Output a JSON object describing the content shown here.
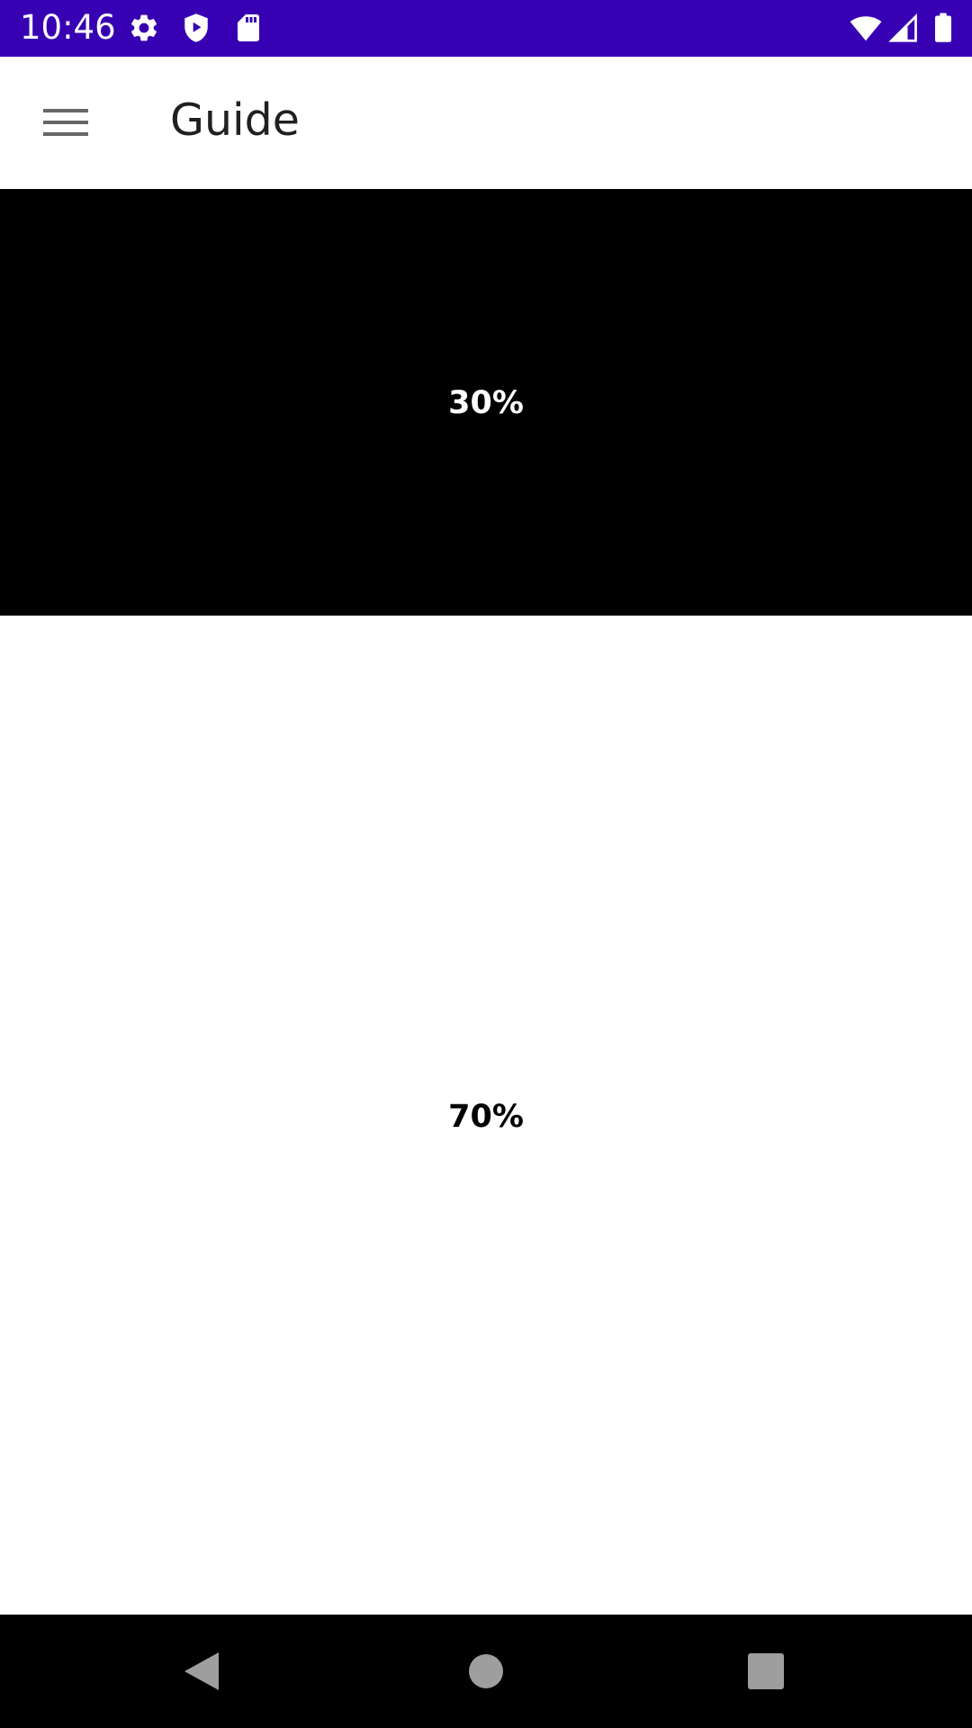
{
  "status_bar": {
    "time": "10:46",
    "background_color": "#3700b3",
    "left_icons": [
      "settings-icon",
      "shield-play-icon",
      "sd-card-icon"
    ],
    "right_icons": [
      "wifi-icon",
      "cell-signal-icon",
      "battery-icon"
    ]
  },
  "app_bar": {
    "menu_icon": "hamburger-menu-icon",
    "title": "Guide"
  },
  "split_view": {
    "top": {
      "label": "30%",
      "fraction": 0.3,
      "color": "#000000",
      "text_color": "#ffffff"
    },
    "bottom": {
      "label": "70%",
      "fraction": 0.7,
      "color": "#ffffff",
      "text_color": "#000000"
    }
  },
  "nav_bar": {
    "buttons": [
      "back-icon",
      "home-icon",
      "recents-icon"
    ]
  }
}
